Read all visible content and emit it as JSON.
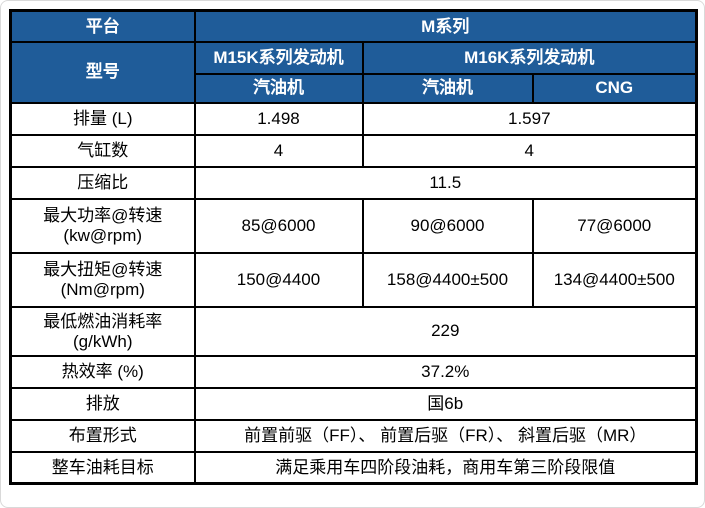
{
  "colors": {
    "header_blue": "#1f5c99",
    "border": "#000000",
    "body_text": "#000000",
    "header_text": "#ffffff"
  },
  "header": {
    "platform_label": "平台",
    "platform_value": "M系列",
    "model_label": "型号",
    "m15k_series": "M15K系列发动机",
    "m16k_series": "M16K系列发动机",
    "m15k_gasoline": "汽油机",
    "m16k_gasoline": "汽油机",
    "m16k_cng": "CNG"
  },
  "rows": {
    "displacement": {
      "label": "排量 (L)",
      "m15k": "1.498",
      "m16k": "1.597"
    },
    "cylinders": {
      "label": "气缸数",
      "m15k": "4",
      "m16k": "4"
    },
    "compression": {
      "label": "压缩比",
      "all": "11.5"
    },
    "max_power": {
      "label": "最大功率@转速",
      "unit": "(kw@rpm)",
      "m15k_gasoline": "85@6000",
      "m16k_gasoline": "90@6000",
      "m16k_cng": "77@6000"
    },
    "max_torque": {
      "label": "最大扭矩@转速",
      "unit": "(Nm@rpm)",
      "m15k_gasoline": "150@4400",
      "m16k_gasoline": "158@4400±500",
      "m16k_cng": "134@4400±500"
    },
    "min_fuel_consumption": {
      "label": "最低燃油消耗率",
      "unit": "(g/kWh)",
      "all": "229"
    },
    "thermal_efficiency": {
      "label": "热效率 (%)",
      "all": "37.2%"
    },
    "emission": {
      "label": "排放",
      "all": "国6b"
    },
    "layout_form": {
      "label": "布置形式",
      "all": "前置前驱（FF）、 前置后驱（FR）、 斜置后驱（MR）"
    },
    "vehicle_fuel_target": {
      "label": "整车油耗目标",
      "all": "满足乘用车四阶段油耗，商用车第三阶段限值"
    }
  }
}
